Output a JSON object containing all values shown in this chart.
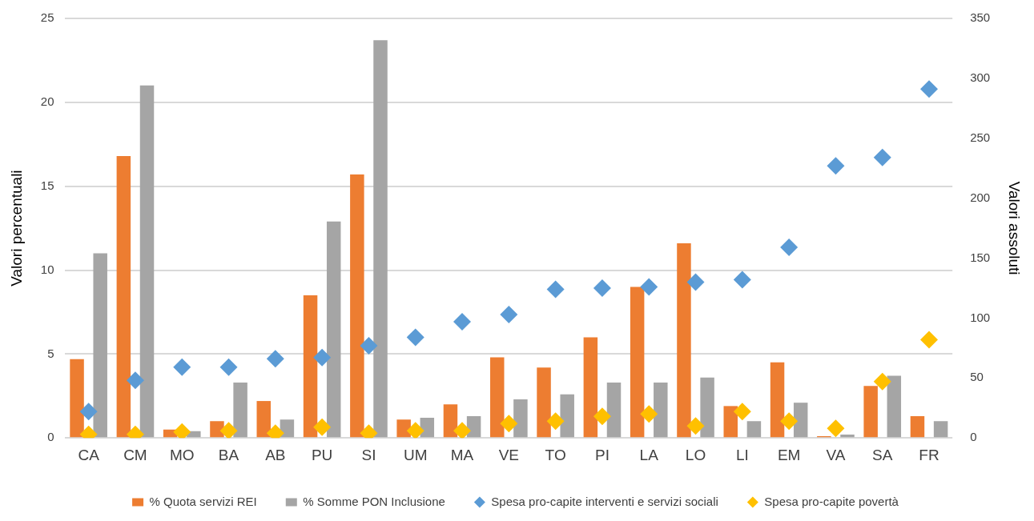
{
  "chart_data": {
    "type": "bar",
    "categories": [
      "CA",
      "CM",
      "MO",
      "BA",
      "AB",
      "PU",
      "SI",
      "UM",
      "MA",
      "VE",
      "TO",
      "PI",
      "LA",
      "LO",
      "LI",
      "EM",
      "VA",
      "SA",
      "FR"
    ],
    "ylabel": "Valori percentuali",
    "y2label": "Valori assoluti",
    "ylim": [
      0,
      25
    ],
    "yticks": [
      0,
      5,
      10,
      15,
      20,
      25
    ],
    "y2lim": [
      0,
      350
    ],
    "y2ticks": [
      0,
      50,
      100,
      150,
      200,
      250,
      300,
      350
    ],
    "grid": "y",
    "legend": "bottom",
    "series": [
      {
        "name": "% Quota servizi REI",
        "color": "#ed7d31",
        "values": [
          4.7,
          16.8,
          0.5,
          1.0,
          2.2,
          8.5,
          15.7,
          1.1,
          2.0,
          4.8,
          4.2,
          6.0,
          9.0,
          11.6,
          1.9,
          4.5,
          0.1,
          3.1,
          1.3
        ]
      },
      {
        "name": "% Somme PON Inclusione",
        "color": "#a5a5a5",
        "values": [
          11.0,
          21.0,
          0.4,
          3.3,
          1.1,
          12.9,
          23.7,
          1.2,
          1.3,
          2.3,
          2.6,
          3.3,
          3.3,
          3.6,
          1.0,
          2.1,
          0.2,
          3.7,
          1.0
        ]
      },
      {
        "name": "Spesa pro-capite interventi e servizi sociali",
        "type": "scatter",
        "axis": "y2",
        "marker": "diamond",
        "color": "#5b9bd5",
        "values": [
          22,
          48,
          59,
          59,
          66,
          67,
          77,
          84,
          97,
          103,
          124,
          125,
          126,
          130,
          132,
          159,
          227,
          234,
          291
        ]
      },
      {
        "name": "Spesa pro-capite povertà",
        "type": "scatter",
        "axis": "y2",
        "marker": "diamond",
        "color": "#ffc000",
        "values": [
          3,
          3,
          5,
          6,
          4,
          9,
          4,
          6,
          6,
          12,
          14,
          18,
          20,
          10,
          22,
          14,
          8,
          47,
          82
        ]
      }
    ]
  }
}
